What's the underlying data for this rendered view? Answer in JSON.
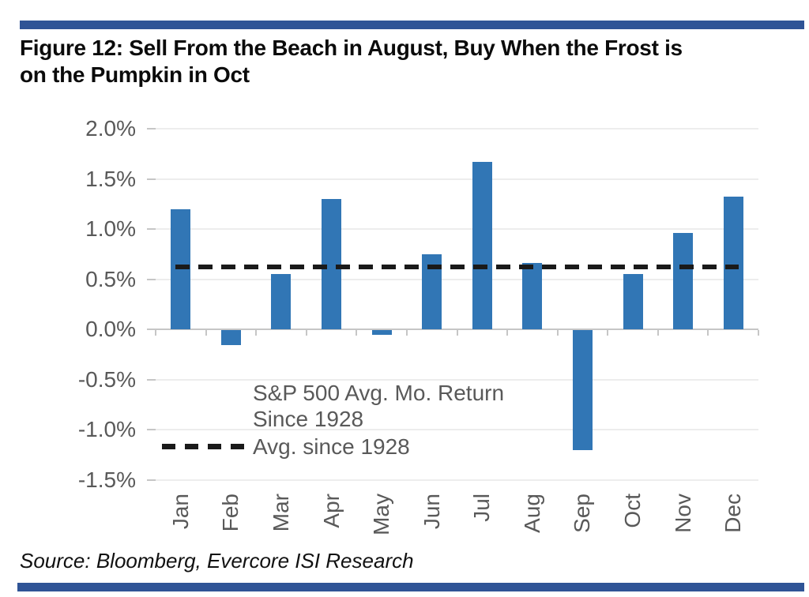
{
  "figure": {
    "title_line1": "Figure 12: Sell From the Beach in August, Buy When the Frost is",
    "title_line2": "on the Pumpkin in Oct",
    "source": "Source: Bloomberg, Evercore ISI Research"
  },
  "legend": {
    "bars_label_line1": "S&P 500 Avg. Mo. Return",
    "bars_label_line2": "Since 1928",
    "avg_label": "Avg. since 1928"
  },
  "chart_data": {
    "type": "bar",
    "title": "Figure 12: Sell From the Beach in August, Buy When the Frost is on the Pumpkin in Oct",
    "categories": [
      "Jan",
      "Feb",
      "Mar",
      "Apr",
      "May",
      "Jun",
      "Jul",
      "Aug",
      "Sep",
      "Oct",
      "Nov",
      "Dec"
    ],
    "series": [
      {
        "name": "S&P 500 Avg. Mo. Return Since 1928",
        "values": [
          1.2,
          -0.15,
          0.55,
          1.3,
          -0.05,
          0.75,
          1.67,
          0.66,
          -1.2,
          0.55,
          0.96,
          1.32
        ],
        "color": "#3176b5"
      }
    ],
    "reference_line": {
      "name": "Avg. since 1928",
      "value": 0.62,
      "style": "dashed",
      "color": "#1a1a1a"
    },
    "xlabel": "",
    "ylabel": "",
    "ylim": [
      -1.5,
      2.0
    ],
    "yticks": [
      2.0,
      1.5,
      1.0,
      0.5,
      0.0,
      -0.5,
      -1.0,
      -1.5
    ],
    "ytick_suffix": "%",
    "grid": true,
    "legend_position": "inside bottom-left",
    "x_labels_rotated": true
  },
  "colors": {
    "bar": "#3176b5",
    "rule": "#2f5496",
    "axis_text": "#595959",
    "grid": "#ededed",
    "axis_line": "#c6c6c6",
    "dash": "#1a1a1a"
  }
}
